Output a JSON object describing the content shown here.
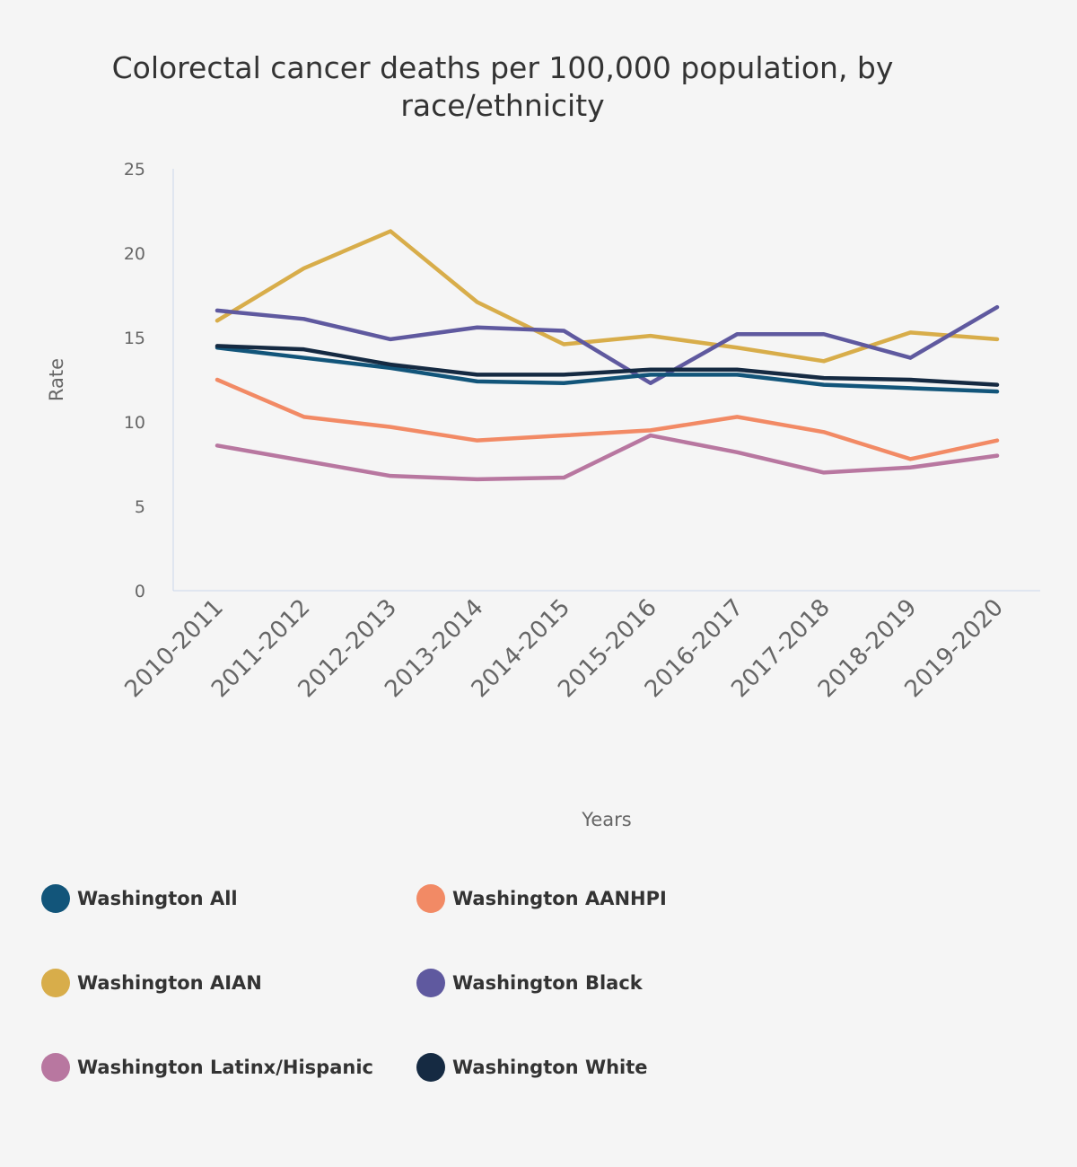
{
  "chart_data": {
    "type": "line",
    "title": "Colorectal cancer deaths per 100,000 population, by race/ethnicity",
    "xlabel": "Years",
    "ylabel": "Rate",
    "ylim": [
      0,
      25
    ],
    "yticks": [
      "0",
      "5",
      "10",
      "15",
      "20",
      "25"
    ],
    "grid": false,
    "legend_position": "bottom",
    "categories": [
      "2010-2011",
      "2011-2012",
      "2012-2013",
      "2013-2014",
      "2014-2015",
      "2015-2016",
      "2016-2017",
      "2017-2018",
      "2018-2019",
      "2019-2020"
    ],
    "series": [
      {
        "name": "Washington All",
        "color": "#12557a",
        "values": [
          14.4,
          13.8,
          13.2,
          12.4,
          12.3,
          12.8,
          12.8,
          12.2,
          12.0,
          11.8
        ]
      },
      {
        "name": "Washington AANHPI",
        "color": "#f28a65",
        "values": [
          12.5,
          10.3,
          9.7,
          8.9,
          9.2,
          9.5,
          10.3,
          9.4,
          7.8,
          8.9
        ]
      },
      {
        "name": "Washington AIAN",
        "color": "#d8ad4a",
        "values": [
          16.0,
          19.1,
          21.3,
          17.1,
          14.6,
          15.1,
          14.4,
          13.6,
          15.3,
          14.9
        ]
      },
      {
        "name": "Washington Black",
        "color": "#5f599f",
        "values": [
          16.6,
          16.1,
          14.9,
          15.6,
          15.4,
          12.3,
          15.2,
          15.2,
          13.8,
          16.8
        ]
      },
      {
        "name": "Washington Latinx/Hispanic",
        "color": "#b877a0",
        "values": [
          8.6,
          7.7,
          6.8,
          6.6,
          6.7,
          9.2,
          8.2,
          7.0,
          7.3,
          8.0
        ]
      },
      {
        "name": "Washington White",
        "color": "#152a42",
        "values": [
          14.5,
          14.3,
          13.4,
          12.8,
          12.8,
          13.1,
          13.1,
          12.6,
          12.5,
          12.2
        ]
      }
    ]
  }
}
